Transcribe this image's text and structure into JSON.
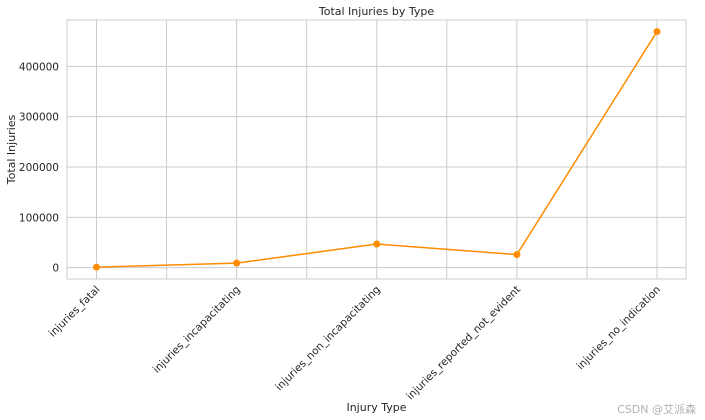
{
  "chart_data": {
    "type": "line",
    "title": "Total Injuries by Type",
    "xlabel": "Injury Type",
    "ylabel": "Total Injuries",
    "categories": [
      "injuries_fatal",
      "injuries_incapacitating",
      "injuries_non_incapacitating",
      "injuries_reported_not_evident",
      "injuries_no_indication"
    ],
    "values": [
      1000,
      9000,
      47000,
      26000,
      469000
    ],
    "yticks": [
      0,
      100000,
      200000,
      300000,
      400000
    ],
    "ylim": [
      -22500,
      492000
    ],
    "grid": true,
    "line_color": "#ff8c00",
    "marker": "circle"
  },
  "watermark": "CSDN @艾派森"
}
